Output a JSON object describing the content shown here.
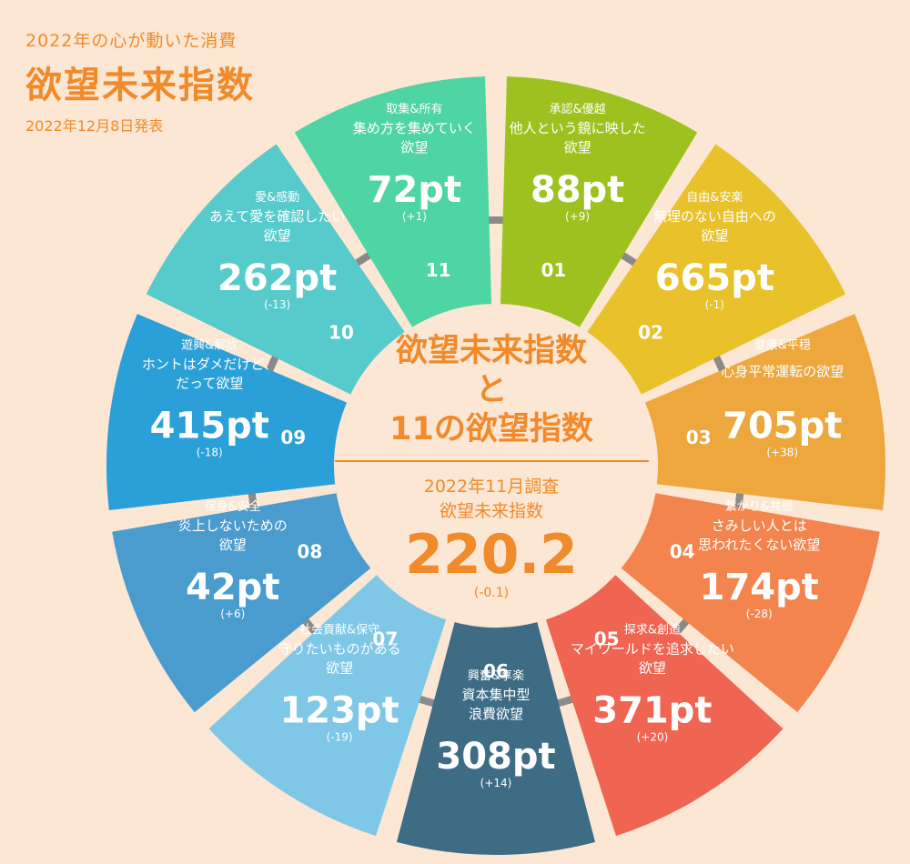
{
  "header": {
    "subtitle": "2022年の心が動いた消費",
    "title": "欲望未来指数",
    "release_date": "2022年12月8日発表"
  },
  "center": {
    "title_line1": "欲望未来指数",
    "title_line2": "と",
    "title_line3": "11の欲望指数",
    "survey_line1": "2022年11月調査",
    "survey_line2": "欲望未来指数",
    "value": "220.2",
    "change": "(-0.1)"
  },
  "chart_data": {
    "type": "diagram",
    "segments": [
      {
        "num": "01",
        "category": "承認&優越",
        "desire": [
          "他人という鏡に映した",
          "欲望"
        ],
        "value": "88pt",
        "change": "(+9)",
        "color": "#9dc21f"
      },
      {
        "num": "02",
        "category": "自由&安楽",
        "desire": [
          "無理のない自由への",
          "欲望"
        ],
        "value": "665pt",
        "change": "(-1)",
        "color": "#e9c12b"
      },
      {
        "num": "03",
        "category": "健康&平穏",
        "desire": [
          "心身平常運転の欲望"
        ],
        "value": "705pt",
        "change": "(+38)",
        "color": "#eda73d"
      },
      {
        "num": "04",
        "category": "繋がり&共感",
        "desire": [
          "さみしい人とは",
          "思われたくない欲望"
        ],
        "value": "174pt",
        "change": "(-28)",
        "color": "#f4844d"
      },
      {
        "num": "05",
        "category": "探求&創造",
        "desire": [
          "マイワールドを追求したい",
          "欲望"
        ],
        "value": "371pt",
        "change": "(+20)",
        "color": "#f06452"
      },
      {
        "num": "06",
        "category": "興奮&享楽",
        "desire": [
          "資本集中型",
          "浪費欲望"
        ],
        "value": "308pt",
        "change": "(+14)",
        "color": "#3e6c84"
      },
      {
        "num": "07",
        "category": "社会貢献&保守",
        "desire": [
          "守りたいものがある",
          "欲望"
        ],
        "value": "123pt",
        "change": "(-19)",
        "color": "#7ec7e6"
      },
      {
        "num": "08",
        "category": "保身&安全",
        "desire": [
          "炎上しないための",
          "欲望"
        ],
        "value": "42pt",
        "change": "(+6)",
        "color": "#4a9bce"
      },
      {
        "num": "09",
        "category": "遊興&解放",
        "desire": [
          "ホントはダメだけど、",
          "だって欲望"
        ],
        "value": "415pt",
        "change": "(-18)",
        "color": "#2a9fd8"
      },
      {
        "num": "10",
        "category": "愛&感動",
        "desire": [
          "あえて愛を確認したい",
          "欲望"
        ],
        "value": "262pt",
        "change": "(-13)",
        "color": "#57cbcb"
      },
      {
        "num": "11",
        "category": "取集&所有",
        "desire": [
          "集め方を集めていく",
          "欲望"
        ],
        "value": "72pt",
        "change": "(+1)",
        "color": "#4fd4a3"
      }
    ]
  }
}
